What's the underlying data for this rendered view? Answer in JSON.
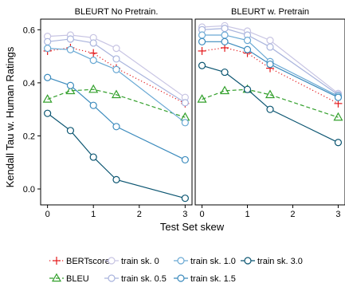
{
  "chart_data": {
    "type": "line",
    "panels": [
      "BLEURT No Pretrain.",
      "BLEURT w. Pretrain"
    ],
    "xlabel": "Test Set skew",
    "ylabel": "Kendall Tau w. Human Ratings",
    "xlim": [
      -0.15,
      3.15
    ],
    "ylim": [
      -0.06,
      0.64
    ],
    "x_ticks": [
      0,
      1,
      2,
      3
    ],
    "y_ticks": [
      0.0,
      0.2,
      0.4,
      0.6
    ],
    "y_tick_labels": [
      "0.0",
      "0.2",
      "0.4",
      "0.6"
    ],
    "grid": false,
    "legend_position": "bottom",
    "series": [
      {
        "name": "BERTscore",
        "color": "#e41a1c",
        "marker": "plus",
        "line": "dotted",
        "x": [
          0,
          0.5,
          1,
          1.5,
          3
        ],
        "panels": [
          [
            0.52,
            0.532,
            0.512,
            0.455,
            0.322
          ],
          [
            0.52,
            0.532,
            0.512,
            0.455,
            0.322
          ]
        ]
      },
      {
        "name": "BLEU",
        "color": "#33a02c",
        "marker": "triangle",
        "line": "dashed",
        "x": [
          0,
          0.5,
          1,
          1.5,
          3
        ],
        "panels": [
          [
            0.338,
            0.37,
            0.375,
            0.355,
            0.27
          ],
          [
            0.338,
            0.37,
            0.375,
            0.355,
            0.27
          ]
        ]
      },
      {
        "name": "train sk. 0",
        "color": "#c7c4e3",
        "marker": "circle",
        "line": "solid",
        "x": [
          0,
          0.5,
          1,
          1.5,
          3
        ],
        "panels": [
          [
            0.575,
            0.58,
            0.57,
            0.53,
            0.345
          ],
          [
            0.61,
            0.615,
            0.595,
            0.56,
            0.36
          ]
        ]
      },
      {
        "name": "train sk. 0.5",
        "color": "#a9b4dd",
        "marker": "circle",
        "line": "solid",
        "x": [
          0,
          0.5,
          1,
          1.5,
          3
        ],
        "panels": [
          [
            0.555,
            0.565,
            0.55,
            0.49,
            0.325
          ],
          [
            0.6,
            0.605,
            0.58,
            0.535,
            0.355
          ]
        ]
      },
      {
        "name": "train sk. 1.0",
        "color": "#6aa9d4",
        "marker": "circle",
        "line": "solid",
        "x": [
          0,
          0.5,
          1,
          1.5,
          3
        ],
        "panels": [
          [
            0.53,
            0.525,
            0.485,
            0.45,
            0.25
          ],
          [
            0.58,
            0.58,
            0.56,
            0.48,
            0.35
          ]
        ]
      },
      {
        "name": "train sk. 1.5",
        "color": "#3c8bbd",
        "marker": "circle",
        "line": "solid",
        "x": [
          0,
          0.5,
          1,
          1.5,
          3
        ],
        "panels": [
          [
            0.42,
            0.39,
            0.315,
            0.235,
            0.11
          ],
          [
            0.555,
            0.555,
            0.525,
            0.47,
            0.345
          ]
        ]
      },
      {
        "name": "train sk. 3.0",
        "color": "#0b5571",
        "marker": "circle",
        "line": "solid",
        "x": [
          0,
          0.5,
          1,
          1.5,
          3
        ],
        "panels": [
          [
            0.285,
            0.22,
            0.12,
            0.035,
            -0.035
          ],
          [
            0.465,
            0.44,
            0.375,
            0.3,
            0.175
          ]
        ]
      }
    ],
    "legend": [
      {
        "series": 0,
        "row": 0,
        "col": 0
      },
      {
        "series": 2,
        "row": 0,
        "col": 1
      },
      {
        "series": 4,
        "row": 0,
        "col": 2
      },
      {
        "series": 6,
        "row": 0,
        "col": 3
      },
      {
        "series": 1,
        "row": 1,
        "col": 0
      },
      {
        "series": 3,
        "row": 1,
        "col": 1
      },
      {
        "series": 5,
        "row": 1,
        "col": 2
      }
    ]
  }
}
